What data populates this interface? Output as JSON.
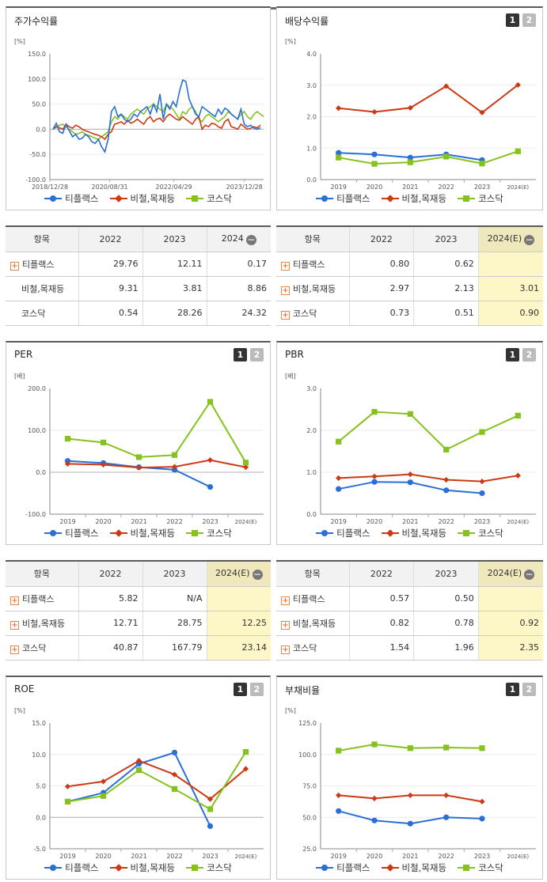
{
  "legend": [
    {
      "name": "티플랙스",
      "color": "#2a6fd6",
      "marker": "circle"
    },
    {
      "name": "비철,목재등",
      "color": "#cc3a14",
      "marker": "diamond"
    },
    {
      "name": "코스닥",
      "color": "#86c21e",
      "marker": "square"
    }
  ],
  "panels": {
    "stock": {
      "title": "주가수익률",
      "buttons": []
    },
    "dividend": {
      "title": "배당수익률",
      "buttons": [
        "1",
        "2"
      ]
    },
    "per": {
      "title": "PER",
      "buttons": [
        "1",
        "2"
      ]
    },
    "pbr": {
      "title": "PBR",
      "buttons": [
        "1",
        "2"
      ]
    },
    "roe": {
      "title": "ROE",
      "buttons": [
        "1",
        "2"
      ]
    },
    "debt": {
      "title": "부채비율",
      "buttons": [
        "1",
        "2"
      ]
    }
  },
  "tables": {
    "stock": {
      "headers": [
        "항목",
        "2022",
        "2023",
        "2024"
      ],
      "rows": [
        {
          "name": "티플랙스",
          "values": [
            "29.76",
            "12.11",
            "0.17"
          ],
          "plus": true
        },
        {
          "name": "비철,목재등",
          "values": [
            "9.31",
            "3.81",
            "8.86"
          ],
          "plus": false
        },
        {
          "name": "코스닥",
          "values": [
            "0.54",
            "28.26",
            "24.32"
          ],
          "plus": false
        }
      ]
    },
    "dividend": {
      "headers": [
        "항목",
        "2022",
        "2023",
        "2024(E)"
      ],
      "rows": [
        {
          "name": "티플랙스",
          "values": [
            "0.80",
            "0.62",
            ""
          ],
          "plus": true
        },
        {
          "name": "비철,목재등",
          "values": [
            "2.97",
            "2.13",
            "3.01"
          ],
          "plus": true
        },
        {
          "name": "코스닥",
          "values": [
            "0.73",
            "0.51",
            "0.90"
          ],
          "plus": true
        }
      ]
    },
    "per": {
      "headers": [
        "항목",
        "2022",
        "2023",
        "2024(E)"
      ],
      "rows": [
        {
          "name": "티플랙스",
          "values": [
            "5.82",
            "N/A",
            ""
          ],
          "plus": true
        },
        {
          "name": "비철,목재등",
          "values": [
            "12.71",
            "28.75",
            "12.25"
          ],
          "plus": true
        },
        {
          "name": "코스닥",
          "values": [
            "40.87",
            "167.79",
            "23.14"
          ],
          "plus": true
        }
      ]
    },
    "pbr": {
      "headers": [
        "항목",
        "2022",
        "2023",
        "2024(E)"
      ],
      "rows": [
        {
          "name": "티플랙스",
          "values": [
            "0.57",
            "0.50",
            ""
          ],
          "plus": true
        },
        {
          "name": "비철,목재등",
          "values": [
            "0.82",
            "0.78",
            "0.92"
          ],
          "plus": true
        },
        {
          "name": "코스닥",
          "values": [
            "1.54",
            "1.96",
            "2.35"
          ],
          "plus": true
        }
      ]
    }
  },
  "chart_data": [
    {
      "id": "stock",
      "type": "line",
      "title": "주가수익률",
      "ylabel": "[%]",
      "ylim": [
        -100,
        150
      ],
      "yticks": [
        "150.0",
        "100.0",
        "50.0",
        "0.0",
        "-50.0",
        "-100.0"
      ],
      "xlabels": [
        "2018/12/28",
        "2020/08/31",
        "2022/04/29",
        "2023/12/28"
      ],
      "xlabel_positions": [
        0,
        0.28,
        0.58,
        0.91
      ],
      "markers": false,
      "series": [
        {
          "name": "티플랙스",
          "values": [
            0,
            12,
            -5,
            -8,
            10,
            -3,
            -15,
            -10,
            -20,
            -18,
            -10,
            -15,
            -25,
            -28,
            -20,
            -35,
            -45,
            -20,
            35,
            45,
            25,
            30,
            20,
            15,
            20,
            30,
            25,
            35,
            40,
            45,
            30,
            50,
            35,
            70,
            20,
            50,
            40,
            55,
            45,
            75,
            98,
            95,
            60,
            45,
            30,
            25,
            45,
            40,
            35,
            30,
            25,
            40,
            30,
            42,
            38,
            30,
            25,
            20,
            40,
            10,
            5,
            8,
            2,
            0,
            3
          ]
        },
        {
          "name": "비철,목재등",
          "values": [
            0,
            5,
            3,
            0,
            10,
            5,
            2,
            8,
            5,
            0,
            -3,
            -5,
            -8,
            -10,
            -12,
            -15,
            -20,
            -10,
            -5,
            10,
            12,
            15,
            10,
            18,
            12,
            15,
            20,
            15,
            10,
            20,
            25,
            15,
            20,
            22,
            15,
            25,
            30,
            25,
            20,
            18,
            25,
            20,
            15,
            10,
            20,
            25,
            0,
            8,
            5,
            12,
            10,
            5,
            2,
            15,
            20,
            5,
            3,
            0,
            10,
            5,
            0,
            2,
            5,
            3,
            8
          ]
        },
        {
          "name": "코스닥",
          "values": [
            0,
            5,
            8,
            10,
            5,
            0,
            -5,
            -10,
            -8,
            -5,
            -10,
            -12,
            -15,
            -18,
            -20,
            -15,
            -10,
            -5,
            15,
            25,
            20,
            30,
            25,
            20,
            30,
            35,
            40,
            35,
            30,
            40,
            45,
            50,
            45,
            40,
            35,
            50,
            45,
            40,
            30,
            20,
            35,
            30,
            40,
            45,
            35,
            20,
            15,
            25,
            30,
            25,
            20,
            15,
            20,
            25,
            35,
            30,
            25,
            20,
            30,
            35,
            25,
            20,
            30,
            35,
            30,
            25
          ]
        }
      ]
    },
    {
      "id": "dividend",
      "type": "line",
      "title": "배당수익률",
      "ylabel": "[%]",
      "ylim": [
        0,
        4
      ],
      "yticks": [
        "4.0",
        "3.0",
        "2.0",
        "1.0",
        "0.0"
      ],
      "x": [
        "2019",
        "2020",
        "2021",
        "2022",
        "2023",
        "2024(E)"
      ],
      "series": [
        {
          "name": "티플랙스",
          "values": [
            0.85,
            0.8,
            0.7,
            0.8,
            0.62,
            null
          ]
        },
        {
          "name": "비철,목재등",
          "values": [
            2.27,
            2.15,
            2.28,
            2.97,
            2.13,
            3.01
          ]
        },
        {
          "name": "코스닥",
          "values": [
            0.7,
            0.5,
            0.55,
            0.73,
            0.51,
            0.9
          ]
        }
      ]
    },
    {
      "id": "per",
      "type": "line",
      "title": "PER",
      "ylabel": "[배]",
      "ylim": [
        -100,
        200
      ],
      "yticks": [
        "200.0",
        "100.0",
        "0.0",
        "-100.0"
      ],
      "x": [
        "2019",
        "2020",
        "2021",
        "2022",
        "2023",
        "2024(E)"
      ],
      "series": [
        {
          "name": "티플랙스",
          "values": [
            27,
            22,
            12,
            6,
            -35,
            null
          ]
        },
        {
          "name": "비철,목재등",
          "values": [
            20,
            18,
            11,
            13,
            29,
            12
          ]
        },
        {
          "name": "코스닥",
          "values": [
            80,
            71,
            36,
            41,
            168,
            23
          ]
        }
      ]
    },
    {
      "id": "pbr",
      "type": "line",
      "title": "PBR",
      "ylabel": "[배]",
      "ylim": [
        0,
        3
      ],
      "yticks": [
        "3.0",
        "2.0",
        "1.0",
        "0.0"
      ],
      "x": [
        "2019",
        "2020",
        "2021",
        "2022",
        "2023",
        "2024(E)"
      ],
      "series": [
        {
          "name": "티플랙스",
          "values": [
            0.6,
            0.77,
            0.76,
            0.57,
            0.5,
            null
          ]
        },
        {
          "name": "비철,목재등",
          "values": [
            0.86,
            0.9,
            0.95,
            0.82,
            0.78,
            0.92
          ]
        },
        {
          "name": "코스닥",
          "values": [
            1.73,
            2.44,
            2.39,
            1.54,
            1.96,
            2.35
          ]
        }
      ]
    },
    {
      "id": "roe",
      "type": "line",
      "title": "ROE",
      "ylabel": "[%]",
      "ylim": [
        -5,
        15
      ],
      "yticks": [
        "15.0",
        "10.0",
        "5.0",
        "0.0",
        "-5.0"
      ],
      "x": [
        "2019",
        "2020",
        "2021",
        "2022",
        "2023",
        "2024(E)"
      ],
      "series": [
        {
          "name": "티플랙스",
          "values": [
            2.5,
            3.9,
            8.5,
            10.3,
            -1.4,
            null
          ]
        },
        {
          "name": "비철,목재등",
          "values": [
            4.9,
            5.7,
            9.0,
            6.8,
            2.9,
            7.7
          ]
        },
        {
          "name": "코스닥",
          "values": [
            2.5,
            3.4,
            7.5,
            4.5,
            1.3,
            10.4
          ]
        }
      ]
    },
    {
      "id": "debt",
      "type": "line",
      "title": "부채비율",
      "ylabel": "[%]",
      "ylim": [
        25,
        125
      ],
      "yticks": [
        "125.0",
        "100.0",
        "75.0",
        "50.0",
        "25.0"
      ],
      "x": [
        "2019",
        "2020",
        "2021",
        "2022",
        "2023",
        "2024(E)"
      ],
      "series": [
        {
          "name": "티플랙스",
          "values": [
            55,
            47.5,
            45,
            50,
            49,
            null
          ]
        },
        {
          "name": "비철,목재등",
          "values": [
            67.5,
            65,
            67.5,
            67.5,
            62.5,
            null
          ]
        },
        {
          "name": "코스닥",
          "values": [
            103,
            108,
            105,
            105.5,
            105,
            null
          ]
        }
      ]
    }
  ]
}
